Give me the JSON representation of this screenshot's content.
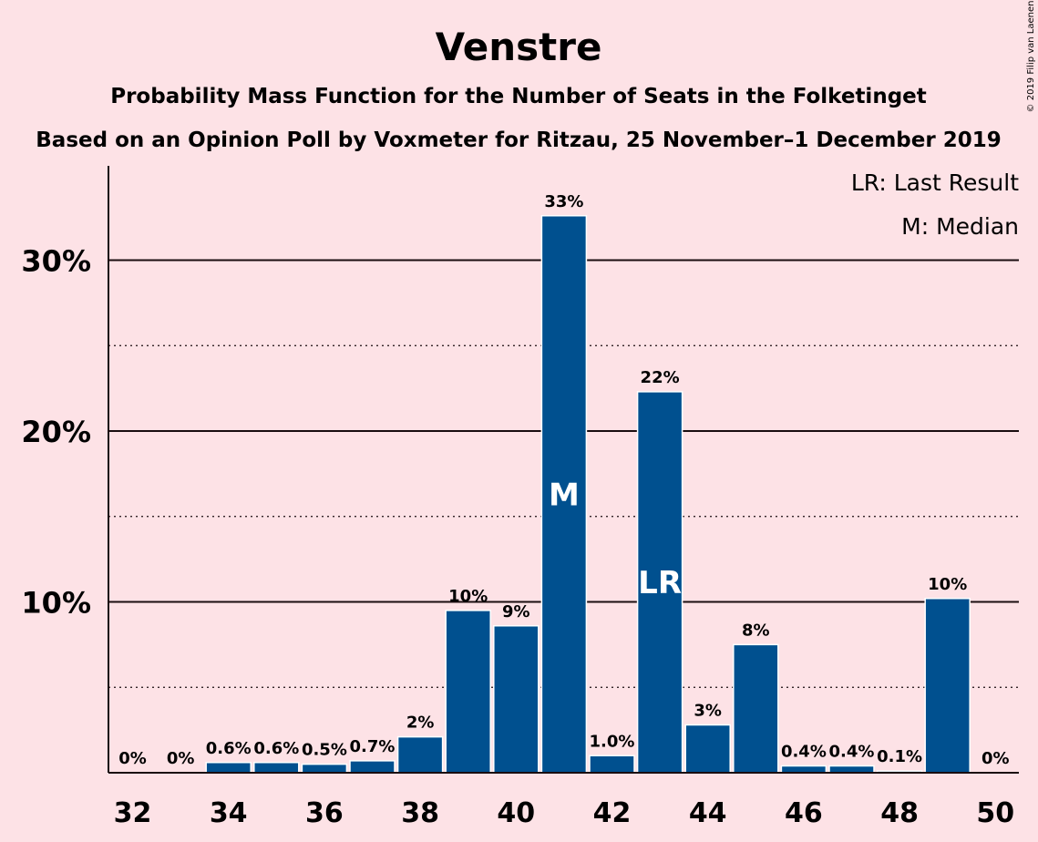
{
  "copyright": "© 2019 Filip van Laenen",
  "chart_data": {
    "type": "bar",
    "title": "Venstre",
    "subtitle": "Probability Mass Function for the Number of Seats in the Folketinget",
    "subtitle2": "Based on an Opinion Poll by Voxmeter for Ritzau, 25 November–1 December 2019",
    "legend": [
      "LR: Last Result",
      "M: Median"
    ],
    "legend_position": "top-right",
    "xlabel": "",
    "ylabel": "",
    "ylim": [
      0,
      35.5
    ],
    "y_major_ticks": [
      10,
      20,
      30
    ],
    "y_major_tick_labels": [
      "10%",
      "20%",
      "30%"
    ],
    "y_minor_gridlines": [
      5,
      15,
      25
    ],
    "x_tick_labels": [
      "32",
      "34",
      "36",
      "38",
      "40",
      "42",
      "44",
      "46",
      "48",
      "50"
    ],
    "bar_color": "#00508f",
    "categories": [
      32,
      33,
      34,
      35,
      36,
      37,
      38,
      39,
      40,
      41,
      42,
      43,
      44,
      45,
      46,
      47,
      48,
      49,
      50
    ],
    "values": [
      0,
      0,
      0.6,
      0.6,
      0.5,
      0.7,
      2.1,
      9.5,
      8.6,
      32.6,
      1.0,
      22.3,
      2.8,
      7.5,
      0.4,
      0.4,
      0.1,
      10.2,
      0
    ],
    "labels": [
      "0%",
      "0%",
      "0.6%",
      "0.6%",
      "0.5%",
      "0.7%",
      "2%",
      "10%",
      "9%",
      "33%",
      "1.0%",
      "22%",
      "3%",
      "8%",
      "0.4%",
      "0.4%",
      "0.1%",
      "10%",
      "0%"
    ],
    "markers": [
      {
        "seats": 41,
        "text": "M"
      },
      {
        "seats": 43,
        "text": "LR"
      }
    ]
  }
}
